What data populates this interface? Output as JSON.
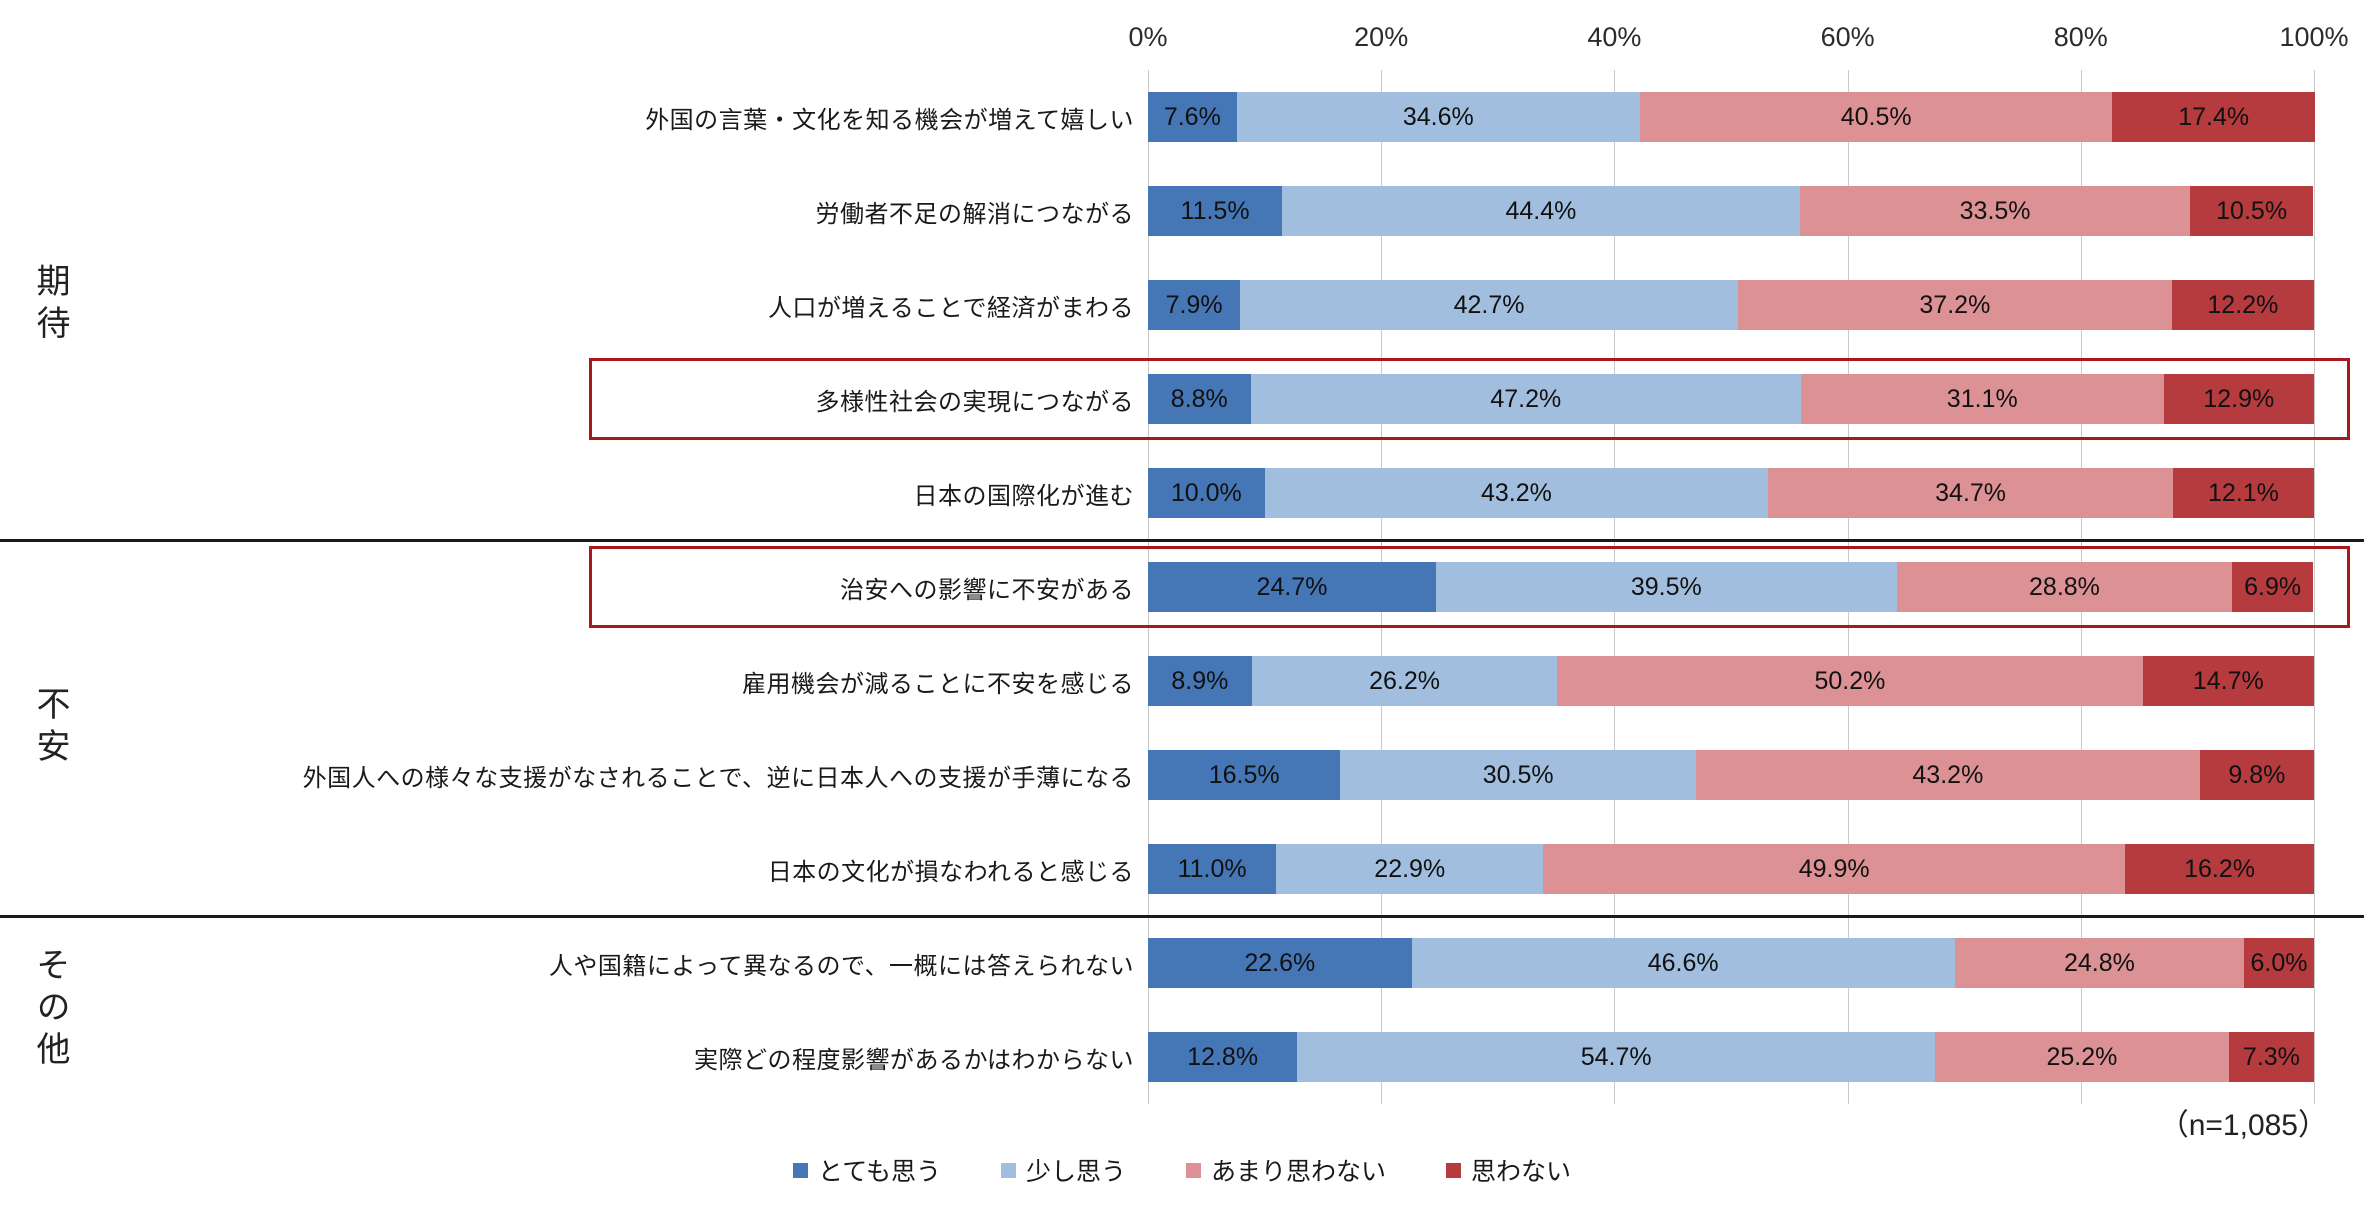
{
  "chart_data": {
    "type": "bar",
    "stacked": true,
    "orientation": "horizontal",
    "title": "",
    "xlabel": "",
    "ylabel": "",
    "xlim": [
      0,
      100
    ],
    "x_ticks": [
      "0%",
      "20%",
      "40%",
      "60%",
      "80%",
      "100%"
    ],
    "grid": true,
    "legend_position": "bottom",
    "note": "（n=1,085）",
    "legend": [
      {
        "name": "とても思う",
        "color": "#4576b5"
      },
      {
        "name": "少し思う",
        "color": "#a2bedf"
      },
      {
        "name": "あまり思わない",
        "color": "#dc9195"
      },
      {
        "name": "思わない",
        "color": "#b53b3e"
      }
    ],
    "sections": [
      {
        "label": "期待",
        "rows": [
          0,
          4
        ]
      },
      {
        "label": "不安",
        "rows": [
          5,
          8
        ]
      },
      {
        "label": "その他",
        "rows": [
          9,
          10
        ]
      }
    ],
    "categories": [
      "外国の言葉・文化を知る機会が増えて嬉しい",
      "労働者不足の解消につながる",
      "人口が増えることで経済がまわる",
      "多様性社会の実現につながる",
      "日本の国際化が進む",
      "治安への影響に不安がある",
      "雇用機会が減ることに不安を感じる",
      "外国人への様々な支援がなされることで、逆に日本人への支援が手薄になる",
      "日本の文化が損なわれると感じる",
      "人や国籍によって異なるので、一概には答えられない",
      "実際どの程度影響があるかはわからない"
    ],
    "series": [
      {
        "name": "とても思う",
        "values": [
          7.6,
          11.5,
          7.9,
          8.8,
          10.0,
          24.7,
          8.9,
          16.5,
          11.0,
          22.6,
          12.8
        ]
      },
      {
        "name": "少し思う",
        "values": [
          34.6,
          44.4,
          42.7,
          47.2,
          43.2,
          39.5,
          26.2,
          30.5,
          22.9,
          46.6,
          54.7
        ]
      },
      {
        "name": "あまり思わない",
        "values": [
          40.5,
          33.5,
          37.2,
          31.1,
          34.7,
          28.8,
          50.2,
          43.2,
          49.9,
          24.8,
          25.2
        ]
      },
      {
        "name": "思わない",
        "values": [
          17.4,
          10.5,
          12.2,
          12.9,
          12.1,
          6.9,
          14.7,
          9.8,
          16.2,
          6.0,
          7.3
        ]
      }
    ],
    "highlighted_rows": [
      3,
      5
    ]
  }
}
